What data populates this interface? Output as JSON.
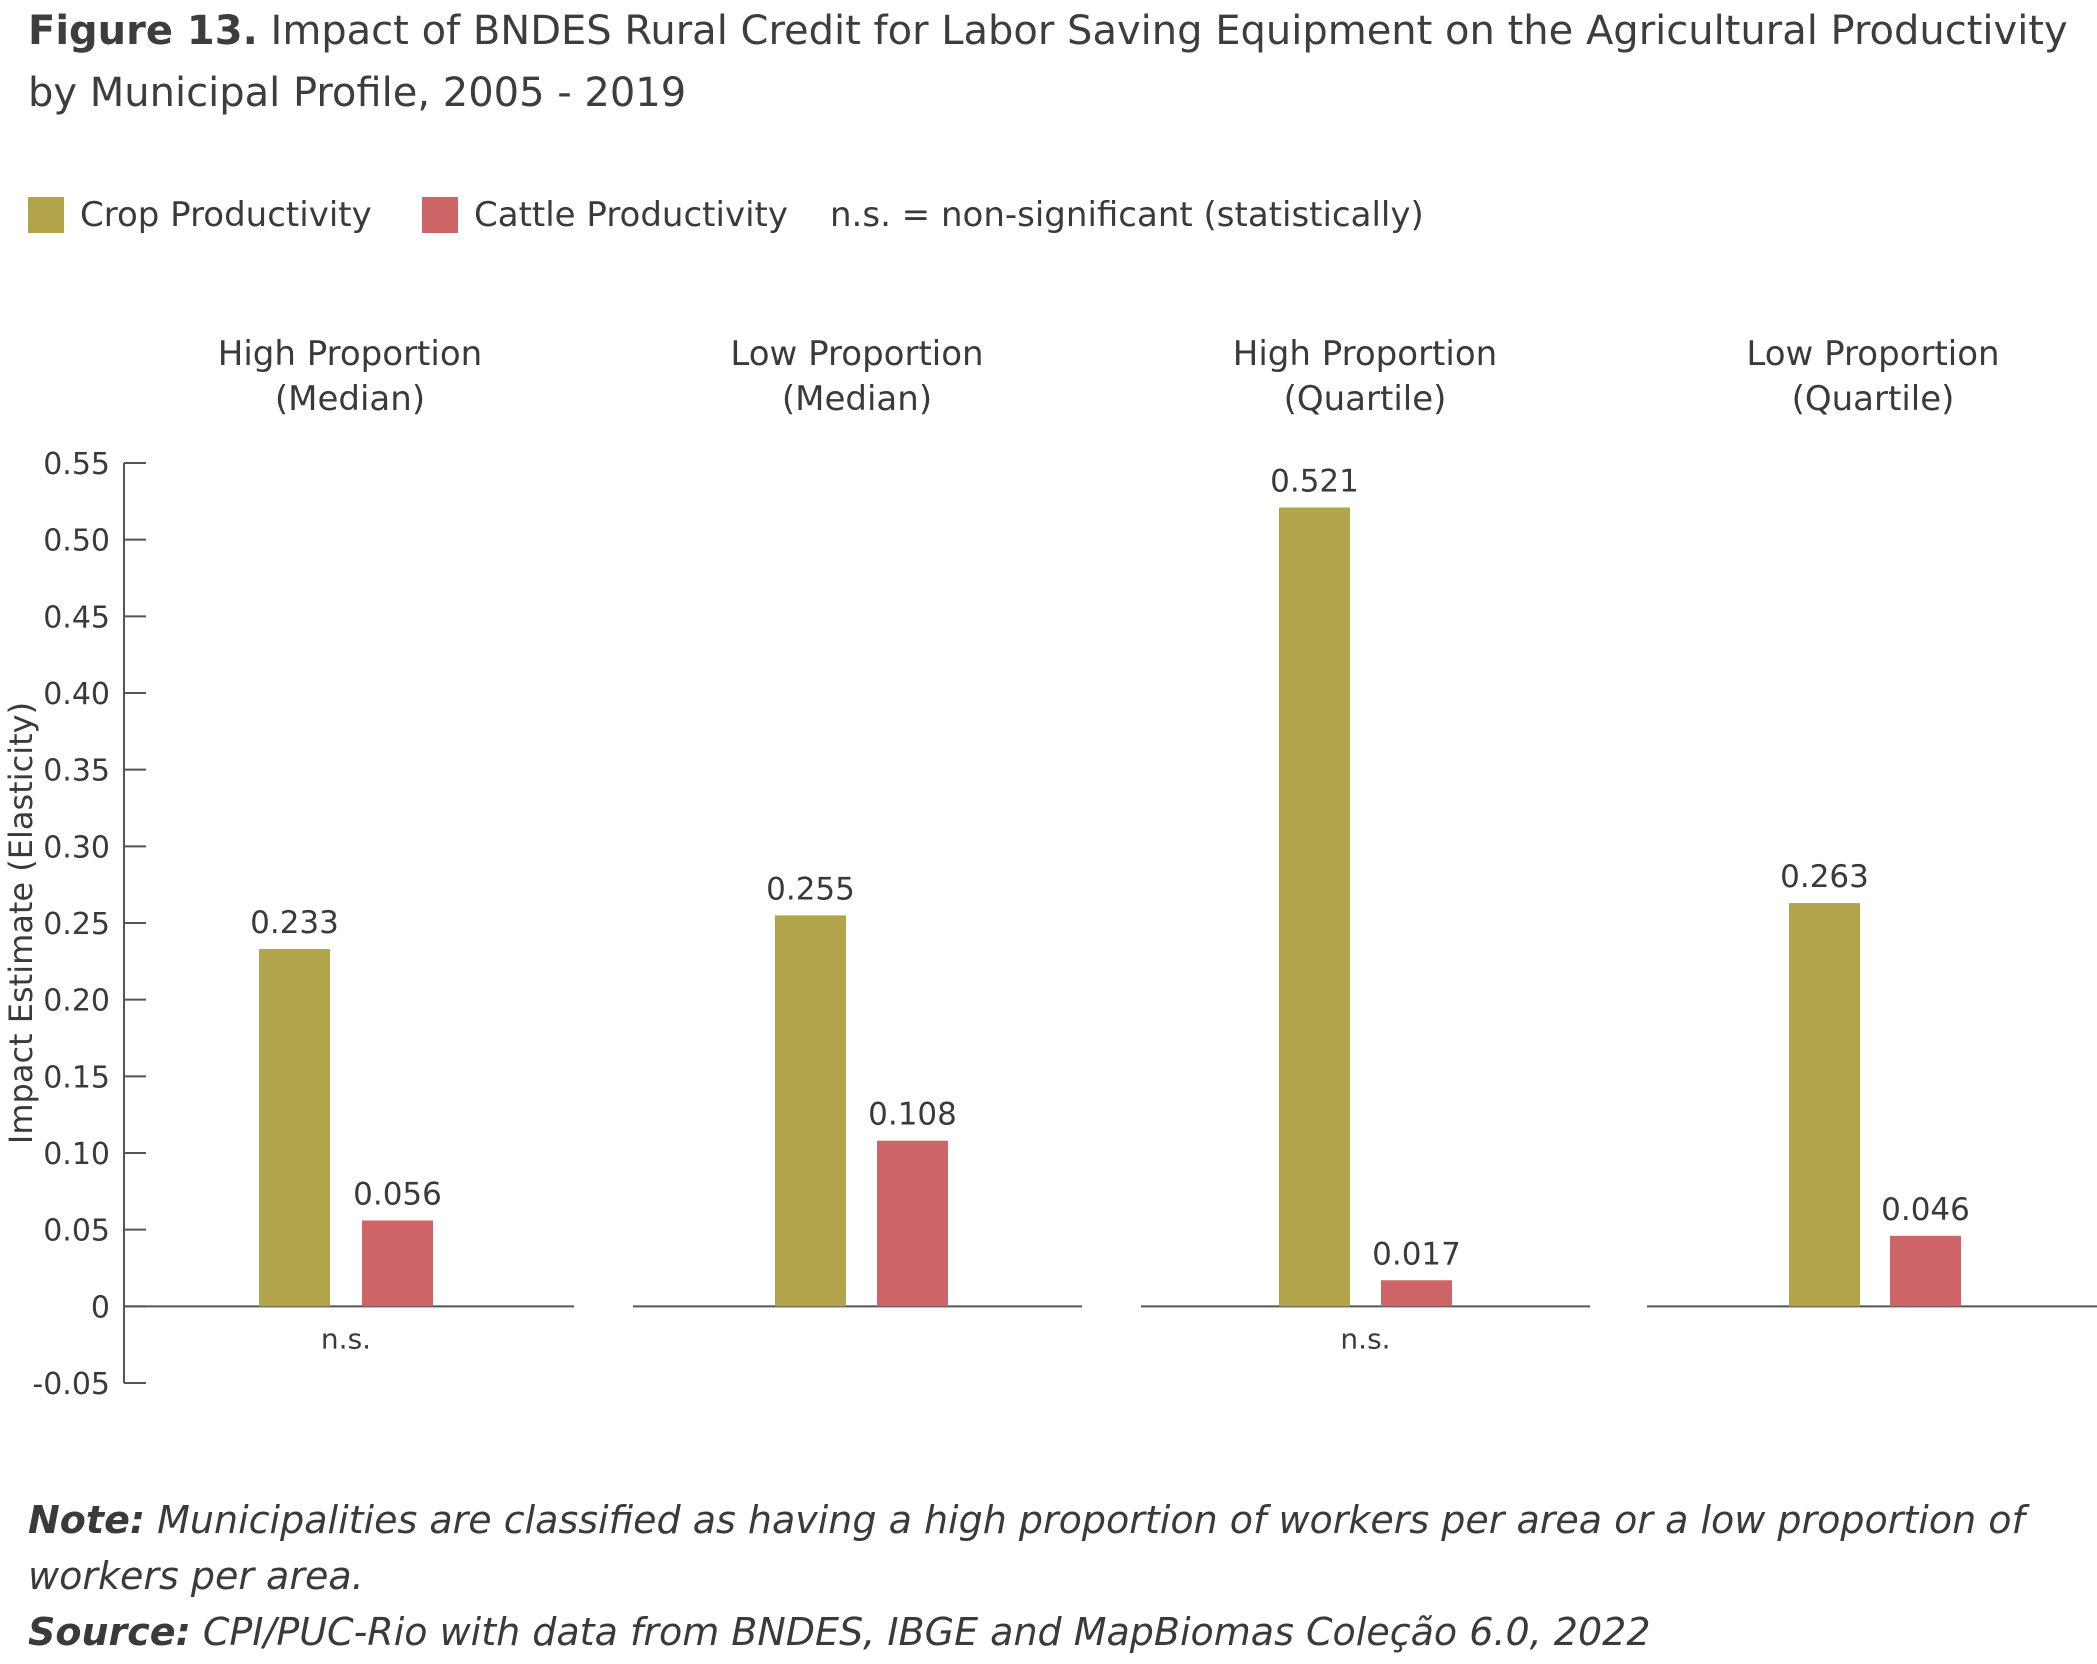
{
  "figure_label": "Figure 13.",
  "title_text": "Impact of BNDES Rural Credit for Labor Saving Equipment on the Agricultural Productivity by Municipal Profile, 2005 - 2019",
  "legend": {
    "crop_label": "Crop Productivity",
    "cattle_label": "Cattle Productivity",
    "ns_note": "n.s. = non-significant (statistically)"
  },
  "colors": {
    "crop": "#b2a44a",
    "cattle": "#cc6468"
  },
  "note_label": "Note:",
  "note_text": "Municipalities are classified as having a high proportion of workers per area or a low proportion of workers per area.",
  "source_label": "Source:",
  "source_text": "CPI/PUC-Rio with data from BNDES, IBGE and MapBiomas Coleção 6.0, 2022",
  "chart_data": {
    "type": "bar",
    "ylabel": "Impact Estimate (Elasticity)",
    "ylim": [
      -0.05,
      0.55
    ],
    "yticks": [
      "0.55",
      "0.50",
      "0.45",
      "0.40",
      "0.35",
      "0.30",
      "0.25",
      "0.20",
      "0.15",
      "0.10",
      "0.05",
      "0",
      "-0.05"
    ],
    "ytick_values": [
      0.55,
      0.5,
      0.45,
      0.4,
      0.35,
      0.3,
      0.25,
      0.2,
      0.15,
      0.1,
      0.05,
      0,
      -0.05
    ],
    "categories": [
      [
        "High Proportion",
        "(Median)"
      ],
      [
        "Low Proportion",
        "(Median)"
      ],
      [
        "High Proportion",
        "(Quartile)"
      ],
      [
        "Low Proportion",
        "(Quartile)"
      ]
    ],
    "series": [
      {
        "name": "Crop Productivity",
        "values": [
          0.233,
          0.255,
          0.521,
          0.263
        ],
        "labels": [
          "0.233",
          "0.255",
          "0.521",
          "0.263"
        ]
      },
      {
        "name": "Cattle Productivity",
        "values": [
          0.056,
          0.108,
          0.017,
          0.046
        ],
        "labels": [
          "0.056",
          "0.108",
          "0.017",
          "0.046"
        ]
      }
    ],
    "ns_labels": [
      "n.s.",
      "",
      "n.s.",
      ""
    ],
    "grid": false
  }
}
